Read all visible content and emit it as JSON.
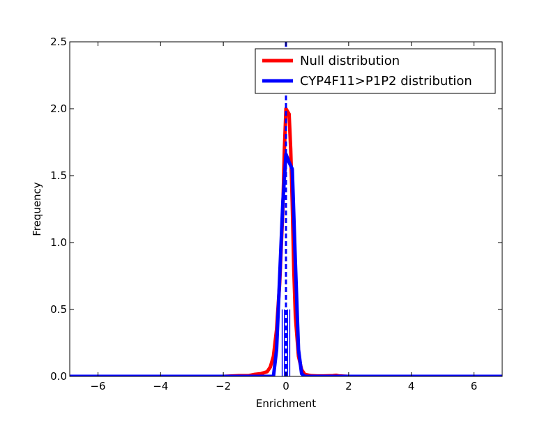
{
  "chart_data": {
    "type": "line",
    "title": "",
    "xlabel": "Enrichment",
    "ylabel": "Frequency",
    "xlim": [
      -6.9,
      6.9
    ],
    "ylim": [
      0,
      2.5
    ],
    "xticks": [
      -6,
      -4,
      -2,
      0,
      2,
      4,
      6
    ],
    "yticks": [
      0.0,
      0.5,
      1.0,
      1.5,
      2.0,
      2.5
    ],
    "xtick_labels": [
      "−6",
      "−4",
      "−2",
      "0",
      "2",
      "4",
      "6"
    ],
    "ytick_labels": [
      "0.0",
      "0.5",
      "1.0",
      "1.5",
      "2.0",
      "2.5"
    ],
    "grid": false,
    "legend_position": "top-right",
    "series": [
      {
        "name": "Null distribution",
        "color": "#ff0000",
        "x": [
          -6.9,
          -2.0,
          -1.5,
          -1.2,
          -1.0,
          -0.8,
          -0.6,
          -0.5,
          -0.4,
          -0.3,
          -0.2,
          -0.1,
          -0.05,
          0.0,
          0.05,
          0.1,
          0.15,
          0.2,
          0.25,
          0.3,
          0.4,
          0.5,
          0.6,
          0.7,
          0.8,
          1.0,
          1.2,
          1.5,
          1.6,
          1.7,
          2.0,
          6.9
        ],
        "y": [
          0.0,
          0.0,
          0.005,
          0.005,
          0.015,
          0.02,
          0.035,
          0.07,
          0.15,
          0.35,
          0.7,
          1.25,
          1.7,
          2.0,
          1.98,
          1.96,
          1.7,
          1.3,
          0.8,
          0.45,
          0.15,
          0.05,
          0.015,
          0.01,
          0.005,
          0.003,
          0.003,
          0.005,
          0.008,
          0.003,
          0.0,
          0.0
        ]
      },
      {
        "name": "CYP4F11>P1P2 distribution",
        "color": "#0000ff",
        "x": [
          -6.9,
          -0.5,
          -0.4,
          -0.3,
          -0.2,
          -0.1,
          0.0,
          0.1,
          0.2,
          0.3,
          0.4,
          0.5,
          0.6,
          0.7,
          6.9
        ],
        "y": [
          0.0,
          0.0,
          0.0,
          0.2,
          0.75,
          1.3,
          1.66,
          1.6,
          1.55,
          0.85,
          0.2,
          0.02,
          0.0,
          0.0,
          0.0
        ]
      }
    ],
    "reference_line": {
      "x": 0.0,
      "style": "dashed",
      "color": "#0000ff"
    },
    "observed_bars": {
      "color": "#0000ff",
      "x": [
        -0.12,
        -0.05,
        0.05,
        0.12
      ],
      "height": 0.5
    }
  }
}
